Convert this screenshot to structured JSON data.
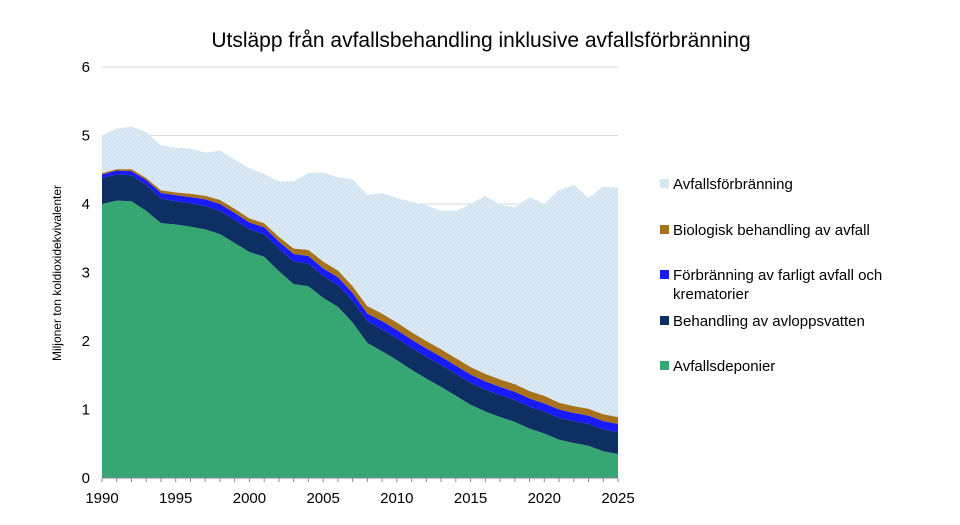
{
  "chart_data": {
    "type": "area",
    "stacked": true,
    "title": "Utsläpp från avfallsbehandling inklusive avfallsförbränning",
    "xlabel": "",
    "ylabel": "Miljoner ton koldioxidekvivalenter",
    "xlim": [
      1990,
      2025
    ],
    "ylim": [
      0,
      6
    ],
    "x_ticks": [
      1990,
      1995,
      2000,
      2005,
      2010,
      2015,
      2020,
      2025
    ],
    "y_ticks": [
      0,
      1,
      2,
      3,
      4,
      5,
      6
    ],
    "grid": "horizontal",
    "legend_position": "right",
    "x": [
      1990,
      1991,
      1992,
      1993,
      1994,
      1995,
      1996,
      1997,
      1998,
      1999,
      2000,
      2001,
      2002,
      2003,
      2004,
      2005,
      2006,
      2007,
      2008,
      2009,
      2010,
      2011,
      2012,
      2013,
      2014,
      2015,
      2016,
      2017,
      2018,
      2019,
      2020,
      2021,
      2022,
      2023,
      2024,
      2025
    ],
    "series": [
      {
        "name": "Avfallsdeponier",
        "color": "#36a673",
        "values": [
          4.0,
          4.05,
          4.04,
          3.9,
          3.72,
          3.7,
          3.67,
          3.63,
          3.56,
          3.43,
          3.3,
          3.23,
          3.02,
          2.83,
          2.8,
          2.63,
          2.5,
          2.27,
          1.97,
          1.85,
          1.72,
          1.58,
          1.45,
          1.33,
          1.2,
          1.07,
          0.97,
          0.89,
          0.82,
          0.72,
          0.65,
          0.56,
          0.51,
          0.47,
          0.39,
          0.35
        ]
      },
      {
        "name": "Behandling av avloppsvatten",
        "color": "#0d2f61",
        "values": [
          0.38,
          0.38,
          0.38,
          0.38,
          0.36,
          0.34,
          0.34,
          0.34,
          0.34,
          0.34,
          0.33,
          0.33,
          0.33,
          0.33,
          0.33,
          0.32,
          0.32,
          0.32,
          0.32,
          0.32,
          0.32,
          0.32,
          0.32,
          0.32,
          0.32,
          0.32,
          0.32,
          0.32,
          0.32,
          0.32,
          0.32,
          0.32,
          0.32,
          0.32,
          0.32,
          0.32
        ]
      },
      {
        "name": "Förbränning av farligt avfall och krematorier",
        "color": "#1a1aff",
        "values": [
          0.05,
          0.06,
          0.06,
          0.07,
          0.08,
          0.09,
          0.09,
          0.1,
          0.1,
          0.1,
          0.1,
          0.1,
          0.1,
          0.11,
          0.11,
          0.11,
          0.11,
          0.11,
          0.11,
          0.12,
          0.12,
          0.12,
          0.12,
          0.12,
          0.12,
          0.12,
          0.12,
          0.12,
          0.12,
          0.12,
          0.12,
          0.12,
          0.12,
          0.12,
          0.12,
          0.12
        ]
      },
      {
        "name": "Biologisk behandling av avfall",
        "color": "#a8721d",
        "values": [
          0.02,
          0.02,
          0.03,
          0.03,
          0.04,
          0.04,
          0.05,
          0.05,
          0.06,
          0.06,
          0.06,
          0.06,
          0.07,
          0.08,
          0.09,
          0.1,
          0.1,
          0.1,
          0.11,
          0.11,
          0.11,
          0.11,
          0.11,
          0.11,
          0.11,
          0.11,
          0.11,
          0.11,
          0.11,
          0.11,
          0.11,
          0.1,
          0.1,
          0.1,
          0.1,
          0.1
        ]
      },
      {
        "name": "Avfallsförbränning",
        "color": "#dceaf5",
        "values": [
          0.55,
          0.59,
          0.62,
          0.67,
          0.66,
          0.65,
          0.66,
          0.63,
          0.72,
          0.72,
          0.73,
          0.72,
          0.81,
          0.98,
          1.12,
          1.3,
          1.36,
          1.56,
          1.62,
          1.76,
          1.82,
          1.9,
          1.98,
          2.02,
          2.15,
          2.38,
          2.6,
          2.55,
          2.58,
          2.83,
          2.8,
          3.1,
          3.23,
          3.08,
          3.32,
          3.35
        ]
      }
    ],
    "legend_order": [
      "Avfallsförbränning",
      "Biologisk behandling av avfall",
      "Förbränning av farligt avfall och krematorier",
      "Behandling av avloppsvatten",
      "Avfallsdeponier"
    ],
    "legend_labels": {
      "Avfallsförbränning": [
        "Avfallsförbränning"
      ],
      "Biologisk behandling av avfall": [
        "Biologisk behandling av avfall"
      ],
      "Förbränning av farligt avfall och krematorier": [
        "Förbränning av farligt avfall och",
        "krematorier"
      ],
      "Behandling av avloppsvatten": [
        "Behandling av avloppsvatten"
      ],
      "Avfallsdeponier": [
        "Avfallsdeponier"
      ]
    }
  }
}
